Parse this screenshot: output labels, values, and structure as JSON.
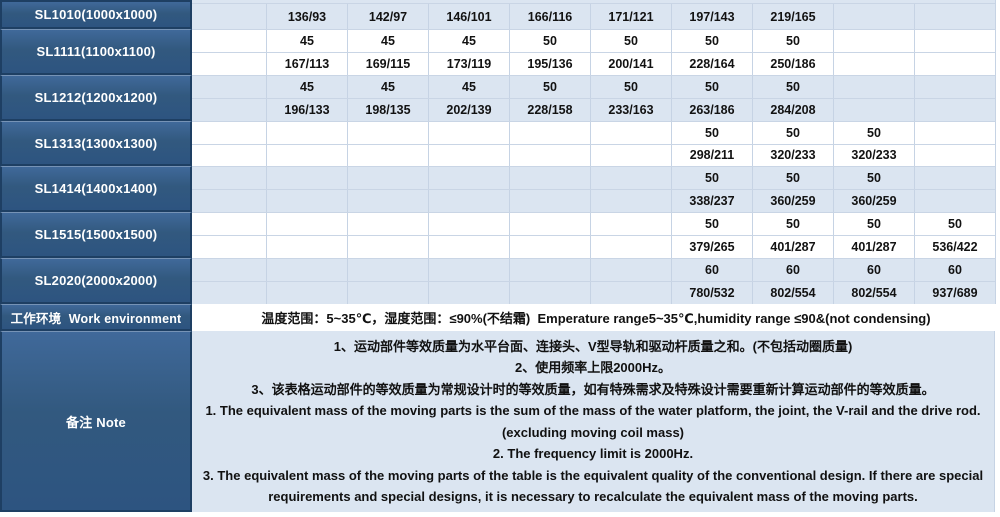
{
  "colors": {
    "header_blue": "#2d5480",
    "header_blue_light": "#40699a",
    "border_navy": "#1e3f63",
    "row_highlight": "#dbe5f1",
    "grid_line": "#c6d3e4",
    "text_dark": "#121212",
    "text_white": "#ffffff"
  },
  "table": {
    "blocks": [
      {
        "model": "SL1010(1000x1000)",
        "mass": [
          "136/93",
          "142/97",
          "146/101",
          "166/116",
          "171/121",
          "197/143",
          "219/165",
          "",
          ""
        ]
      },
      {
        "model": "SL1111(1100x1100)",
        "accel": [
          "45",
          "45",
          "45",
          "50",
          "50",
          "50",
          "50",
          "",
          ""
        ],
        "mass": [
          "167/113",
          "169/115",
          "173/119",
          "195/136",
          "200/141",
          "228/164",
          "250/186",
          "",
          ""
        ]
      },
      {
        "model": "SL1212(1200x1200)",
        "accel": [
          "45",
          "45",
          "45",
          "50",
          "50",
          "50",
          "50",
          "",
          ""
        ],
        "mass": [
          "196/133",
          "198/135",
          "202/139",
          "228/158",
          "233/163",
          "263/186",
          "284/208",
          "",
          ""
        ]
      },
      {
        "model": "SL1313(1300x1300)",
        "accel": [
          "",
          "",
          "",
          "",
          "",
          "50",
          "50",
          "50",
          ""
        ],
        "mass": [
          "",
          "",
          "",
          "",
          "",
          "298/211",
          "320/233",
          "320/233",
          ""
        ]
      },
      {
        "model": "SL1414(1400x1400)",
        "accel": [
          "",
          "",
          "",
          "",
          "",
          "50",
          "50",
          "50",
          ""
        ],
        "mass": [
          "",
          "",
          "",
          "",
          "",
          "338/237",
          "360/259",
          "360/259",
          ""
        ]
      },
      {
        "model": "SL1515(1500x1500)",
        "accel": [
          "",
          "",
          "",
          "",
          "",
          "50",
          "50",
          "50",
          "50"
        ],
        "mass": [
          "",
          "",
          "",
          "",
          "",
          "379/265",
          "401/287",
          "401/287",
          "536/422"
        ]
      },
      {
        "model": "SL2020(2000x2000)",
        "accel": [
          "",
          "",
          "",
          "",
          "",
          "60",
          "60",
          "60",
          "60"
        ],
        "mass": [
          "",
          "",
          "",
          "",
          "",
          "780/532",
          "802/554",
          "802/554",
          "937/689"
        ]
      }
    ]
  },
  "environment": {
    "label": "工作环境  Work environment",
    "text": "温度范围：5~35℃，湿度范围：≤90%(不结霜)  Emperature range5~35℃,humidity range ≤90&(not condensing)"
  },
  "note": {
    "label": "备注 Note",
    "lines": [
      "1、运动部件等效质量为水平台面、连接头、V型导轨和驱动杆质量之和。(不包括动圈质量)",
      "2、使用频率上限2000Hz。",
      "3、该表格运动部件的等效质量为常规设计时的等效质量，如有特殊需求及特殊设计需要重新计算运动部件的等效质量。",
      "1. The equivalent mass of the moving parts is the sum of the mass of the water platform, the joint, the V-rail and the drive rod. (excluding moving coil mass)",
      "2. The frequency limit is 2000Hz.",
      "3. The equivalent mass of the moving parts of the table is the equivalent quality of the conventional design. If there are special requirements and special designs, it is necessary to recalculate the equivalent mass of the moving parts."
    ]
  }
}
